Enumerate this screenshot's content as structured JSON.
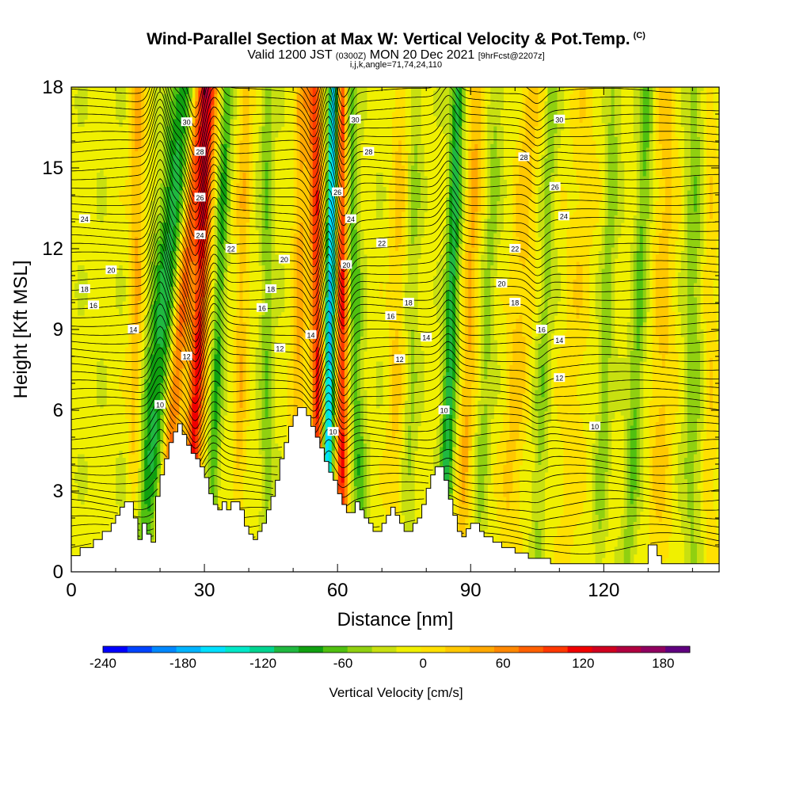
{
  "header": {
    "title": "Wind-Parallel Section at Max W: Vertical Velocity & Pot.Temp.",
    "title_units": "(C)",
    "valid_prefix": "Valid 1200 JST",
    "valid_utc": "(0300Z)",
    "valid_date": "MON 20 Dec 2021",
    "forecast": "[9hrFcst@2207z]",
    "section_params": "i,j,k,angle=71,74,24,110"
  },
  "chart_data": {
    "type": "heatmap",
    "xlabel": "Distance [nm]",
    "ylabel": "Height [Kft MSL]",
    "xlim": [
      0,
      146
    ],
    "ylim": [
      0,
      18
    ],
    "x_ticks": [
      0,
      30,
      60,
      90,
      120
    ],
    "y_ticks": [
      0,
      3,
      6,
      9,
      12,
      15,
      18
    ],
    "colorbar": {
      "label": "Vertical Velocity [cm/s]",
      "min": -240,
      "max": 200,
      "step": 20,
      "tick_values": [
        -240,
        -180,
        -120,
        -60,
        0,
        60,
        120,
        180
      ],
      "colors": [
        "#0000ff",
        "#0044ff",
        "#0088ff",
        "#00b4ff",
        "#00e0ff",
        "#00e8c8",
        "#00d490",
        "#20b840",
        "#10a010",
        "#50c010",
        "#90d010",
        "#c8e010",
        "#f0f000",
        "#ffe000",
        "#ffc800",
        "#ffa800",
        "#ff8800",
        "#ff6000",
        "#ff3800",
        "#f00000",
        "#d00020",
        "#b00040",
        "#900060",
        "#600080"
      ]
    },
    "theta_contour_labels": [
      {
        "x": 26,
        "y": 16.7,
        "v": 30
      },
      {
        "x": 64,
        "y": 16.8,
        "v": 30
      },
      {
        "x": 110,
        "y": 16.8,
        "v": 30
      },
      {
        "x": 29,
        "y": 15.6,
        "v": 28
      },
      {
        "x": 67,
        "y": 15.6,
        "v": 28
      },
      {
        "x": 102,
        "y": 15.4,
        "v": 28
      },
      {
        "x": 29,
        "y": 13.9,
        "v": 26
      },
      {
        "x": 60,
        "y": 14.1,
        "v": 26
      },
      {
        "x": 109,
        "y": 14.3,
        "v": 26
      },
      {
        "x": 3,
        "y": 13.1,
        "v": 24
      },
      {
        "x": 29,
        "y": 12.5,
        "v": 24
      },
      {
        "x": 63,
        "y": 13.1,
        "v": 24
      },
      {
        "x": 111,
        "y": 13.2,
        "v": 24
      },
      {
        "x": 36,
        "y": 12.0,
        "v": 22
      },
      {
        "x": 70,
        "y": 12.2,
        "v": 22
      },
      {
        "x": 100,
        "y": 12.0,
        "v": 22
      },
      {
        "x": 9,
        "y": 11.2,
        "v": 20
      },
      {
        "x": 48,
        "y": 11.6,
        "v": 20
      },
      {
        "x": 62,
        "y": 11.4,
        "v": 20
      },
      {
        "x": 97,
        "y": 10.7,
        "v": 20
      },
      {
        "x": 3,
        "y": 10.5,
        "v": 18
      },
      {
        "x": 45,
        "y": 10.5,
        "v": 18
      },
      {
        "x": 76,
        "y": 10.0,
        "v": 18
      },
      {
        "x": 100,
        "y": 10.0,
        "v": 18
      },
      {
        "x": 5,
        "y": 9.9,
        "v": 16
      },
      {
        "x": 43,
        "y": 9.8,
        "v": 16
      },
      {
        "x": 72,
        "y": 9.5,
        "v": 16
      },
      {
        "x": 106,
        "y": 9.0,
        "v": 16
      },
      {
        "x": 14,
        "y": 9.0,
        "v": 14
      },
      {
        "x": 54,
        "y": 8.8,
        "v": 14
      },
      {
        "x": 80,
        "y": 8.7,
        "v": 14
      },
      {
        "x": 110,
        "y": 8.6,
        "v": 14
      },
      {
        "x": 26,
        "y": 8.0,
        "v": 12
      },
      {
        "x": 47,
        "y": 8.3,
        "v": 12
      },
      {
        "x": 74,
        "y": 7.9,
        "v": 12
      },
      {
        "x": 110,
        "y": 7.2,
        "v": 12
      },
      {
        "x": 20,
        "y": 6.2,
        "v": 10
      },
      {
        "x": 59,
        "y": 5.2,
        "v": 10
      },
      {
        "x": 84,
        "y": 6.0,
        "v": 10
      },
      {
        "x": 118,
        "y": 5.4,
        "v": 10
      }
    ]
  }
}
